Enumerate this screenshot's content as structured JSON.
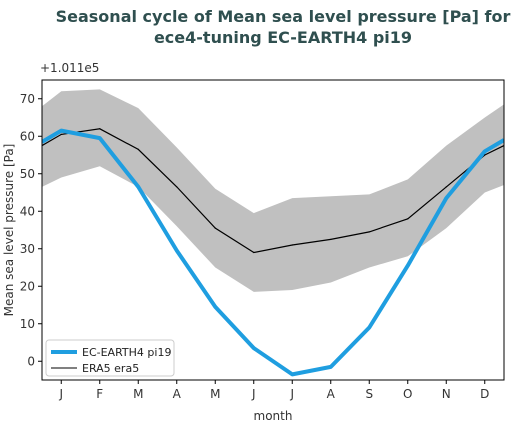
{
  "chart_data": {
    "type": "line",
    "title": "Seasonal cycle of Mean sea level pressure [Pa] for\nece4-tuning EC-EARTH4 pi19",
    "offset_label": "+1.011e5",
    "xlabel": "month",
    "ylabel": "Mean sea level pressure [Pa]",
    "categories": [
      "J",
      "F",
      "M",
      "A",
      "M",
      "J",
      "J",
      "A",
      "S",
      "O",
      "N",
      "D"
    ],
    "yticks": [
      0,
      10,
      20,
      30,
      40,
      50,
      60,
      70
    ],
    "ylim": [
      -5,
      75
    ],
    "grid": false,
    "legend_position": "lower-left",
    "series": [
      {
        "name": "EC-EARTH4 pi19",
        "color": "#1f9ee0",
        "values": [
          61.5,
          59.5,
          46.5,
          29.5,
          14.5,
          3.5,
          -3.5,
          -1.5,
          9,
          25.5,
          43.5,
          56
        ]
      },
      {
        "name": "ERA5 era5",
        "color": "#000000",
        "values": [
          60.5,
          62,
          56.5,
          46.5,
          35.5,
          29,
          31,
          32.5,
          34.5,
          38,
          46.5,
          55
        ],
        "band_lower": [
          49,
          52,
          46.5,
          36,
          25,
          18.5,
          19,
          21,
          25,
          28,
          35.5,
          45
        ],
        "band_upper": [
          72,
          72.5,
          67.5,
          57,
          46,
          39.5,
          43.5,
          44,
          44.5,
          48.5,
          57.5,
          65
        ],
        "band_color": "#c0c0c0"
      }
    ],
    "edge_values": {
      "ece_start": 58.5,
      "ece_end": 59,
      "era_start": 57.5,
      "era_end": 57.5,
      "band_lower_start": 46.5,
      "band_lower_end": 47,
      "band_upper_start": 68,
      "band_upper_end": 68.5
    }
  }
}
